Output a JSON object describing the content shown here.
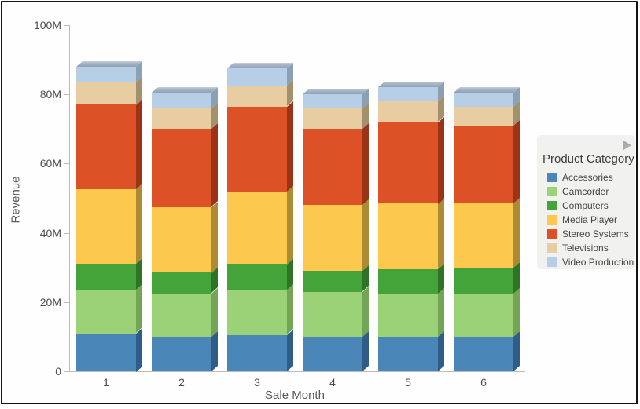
{
  "chart_data": {
    "type": "bar",
    "stacked": true,
    "title": "",
    "xlabel": "Sale Month",
    "ylabel": "Revenue",
    "categories": [
      "1",
      "2",
      "3",
      "4",
      "5",
      "6"
    ],
    "series": [
      {
        "name": "Accessories",
        "color": "#4a86b8",
        "side_color": "#2f5d88",
        "values": [
          11,
          10,
          10.5,
          10,
          10,
          10
        ]
      },
      {
        "name": "Camcorder",
        "color": "#9bd277",
        "side_color": "#74a455",
        "values": [
          12.5,
          12.5,
          13,
          13,
          12.5,
          12.5
        ]
      },
      {
        "name": "Computers",
        "color": "#44a339",
        "side_color": "#2e7326",
        "values": [
          7.5,
          6,
          7.5,
          6,
          7,
          7.5
        ]
      },
      {
        "name": "Media Player",
        "color": "#fcc84d",
        "side_color": "#ab8c33",
        "values": [
          21.5,
          19,
          21,
          19,
          19,
          18.5
        ]
      },
      {
        "name": "Stereo Systems",
        "color": "#dd5126",
        "side_color": "#9b3417",
        "values": [
          24.5,
          22.5,
          24.5,
          22,
          23.5,
          22.5
        ]
      },
      {
        "name": "Televisions",
        "color": "#e8cda3",
        "side_color": "#a3906c",
        "values": [
          6.5,
          6,
          6,
          6,
          6,
          5.5
        ]
      },
      {
        "name": "Video Production",
        "color": "#b7cfe6",
        "side_color": "#8ba0b5",
        "values": [
          4.5,
          4.5,
          5,
          4,
          4,
          4
        ]
      }
    ],
    "ylim": [
      0,
      100
    ],
    "yticks": [
      {
        "value": 0,
        "label": "0"
      },
      {
        "value": 20,
        "label": "20M"
      },
      {
        "value": 40,
        "label": "40M"
      },
      {
        "value": 60,
        "label": "60M"
      },
      {
        "value": 80,
        "label": "80M"
      },
      {
        "value": 100,
        "label": "100M"
      }
    ],
    "grid": false,
    "legend_position": "right"
  },
  "legend": {
    "title": "Product Category",
    "collapse_icon": "right-arrow-icon"
  },
  "colors": {
    "bevel_top": "#c8d2de",
    "bevel_bottom": "#90a1b6",
    "axis": "#bcbcbc",
    "legend_bg": "#f1f1ef",
    "frame_border": "#141414"
  }
}
